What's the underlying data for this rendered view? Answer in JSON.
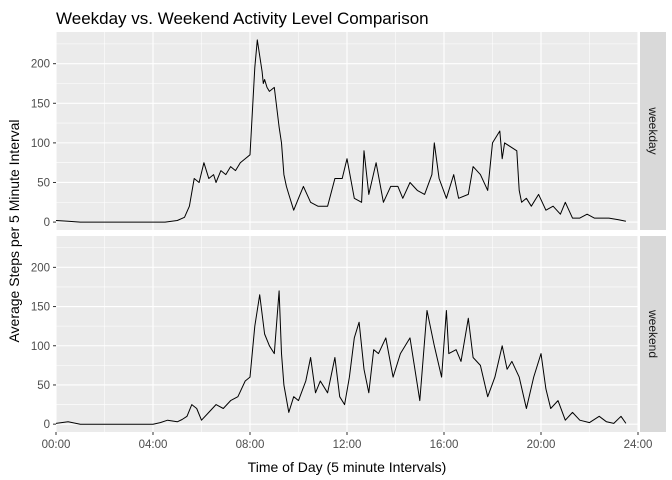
{
  "chart_data": {
    "type": "line",
    "title": "Weekday vs. Weekend Activity Level Comparison",
    "xlabel": "Time of Day (5 minute Intervals)",
    "ylabel": "Average Steps per 5 Minute Interval",
    "x_unit": "hour of day",
    "xlim": [
      0,
      24
    ],
    "ylim": [
      -10,
      240
    ],
    "x_ticks": [
      0,
      4,
      8,
      12,
      16,
      20,
      24
    ],
    "x_tick_labels": [
      "00:00",
      "04:00",
      "08:00",
      "12:00",
      "16:00",
      "20:00",
      "24:00"
    ],
    "y_ticks": [
      0,
      50,
      100,
      150,
      200
    ],
    "y_tick_labels": [
      "0",
      "50",
      "100",
      "150",
      "200"
    ],
    "grid": true,
    "facets": [
      "weekday",
      "weekend"
    ],
    "series": [
      {
        "name": "weekday",
        "x": [
          0,
          0.5,
          1,
          2,
          3,
          4,
          4.5,
          5,
          5.3,
          5.5,
          5.7,
          5.9,
          6.1,
          6.3,
          6.5,
          6.6,
          6.8,
          7.0,
          7.2,
          7.4,
          7.6,
          7.8,
          8.0,
          8.2,
          8.3,
          8.4,
          8.5,
          8.55,
          8.6,
          8.7,
          8.8,
          9.0,
          9.2,
          9.3,
          9.4,
          9.5,
          9.6,
          9.8,
          10.0,
          10.2,
          10.5,
          10.8,
          11.2,
          11.5,
          11.8,
          12.0,
          12.3,
          12.6,
          12.7,
          12.9,
          13.2,
          13.5,
          13.8,
          14.1,
          14.3,
          14.6,
          14.9,
          15.2,
          15.5,
          15.6,
          15.8,
          16.1,
          16.4,
          16.6,
          17.0,
          17.2,
          17.5,
          17.8,
          18.0,
          18.3,
          18.4,
          18.5,
          19.0,
          19.1,
          19.2,
          19.4,
          19.6,
          19.9,
          20.2,
          20.5,
          20.8,
          21.0,
          21.3,
          21.6,
          21.9,
          22.2,
          22.5,
          22.8,
          23.2,
          23.5
        ],
        "values": [
          2,
          1,
          0,
          0,
          0,
          0,
          0,
          2,
          6,
          20,
          55,
          50,
          75,
          55,
          60,
          50,
          65,
          60,
          70,
          65,
          75,
          80,
          85,
          195,
          230,
          210,
          190,
          175,
          180,
          170,
          165,
          170,
          120,
          100,
          60,
          45,
          35,
          15,
          30,
          45,
          25,
          20,
          20,
          55,
          55,
          80,
          30,
          25,
          90,
          35,
          75,
          25,
          45,
          45,
          30,
          50,
          40,
          35,
          60,
          100,
          55,
          30,
          60,
          30,
          35,
          70,
          60,
          40,
          100,
          115,
          80,
          100,
          90,
          40,
          25,
          30,
          20,
          35,
          15,
          20,
          10,
          25,
          5,
          5,
          10,
          5,
          5,
          5,
          3,
          1
        ]
      },
      {
        "name": "weekend",
        "x": [
          0,
          0.5,
          1,
          2,
          3,
          4,
          4.3,
          4.6,
          5.0,
          5.2,
          5.4,
          5.6,
          5.8,
          6.0,
          6.3,
          6.6,
          6.9,
          7.2,
          7.5,
          7.8,
          8.0,
          8.2,
          8.4,
          8.6,
          8.8,
          9.0,
          9.2,
          9.3,
          9.4,
          9.6,
          9.8,
          10.0,
          10.3,
          10.5,
          10.7,
          10.9,
          11.2,
          11.5,
          11.7,
          11.9,
          12.1,
          12.3,
          12.5,
          12.7,
          12.9,
          13.1,
          13.3,
          13.6,
          13.9,
          14.2,
          14.6,
          15.0,
          15.3,
          15.6,
          15.9,
          16.1,
          16.2,
          16.5,
          16.7,
          17.0,
          17.2,
          17.5,
          17.8,
          18.1,
          18.4,
          18.6,
          18.8,
          19.1,
          19.4,
          19.7,
          20.0,
          20.2,
          20.4,
          20.7,
          21.0,
          21.3,
          21.6,
          22.0,
          22.4,
          22.7,
          23.0,
          23.3,
          23.5
        ],
        "values": [
          1,
          3,
          0,
          0,
          0,
          0,
          2,
          5,
          3,
          6,
          10,
          25,
          20,
          5,
          15,
          25,
          20,
          30,
          35,
          55,
          60,
          125,
          165,
          115,
          100,
          90,
          170,
          90,
          50,
          15,
          35,
          30,
          55,
          85,
          40,
          55,
          40,
          85,
          35,
          25,
          60,
          110,
          130,
          70,
          40,
          95,
          90,
          110,
          60,
          90,
          110,
          30,
          145,
          100,
          60,
          145,
          90,
          95,
          80,
          135,
          85,
          75,
          35,
          60,
          100,
          70,
          80,
          60,
          20,
          60,
          90,
          45,
          20,
          30,
          5,
          15,
          5,
          2,
          10,
          3,
          1,
          10,
          1
        ]
      }
    ]
  }
}
